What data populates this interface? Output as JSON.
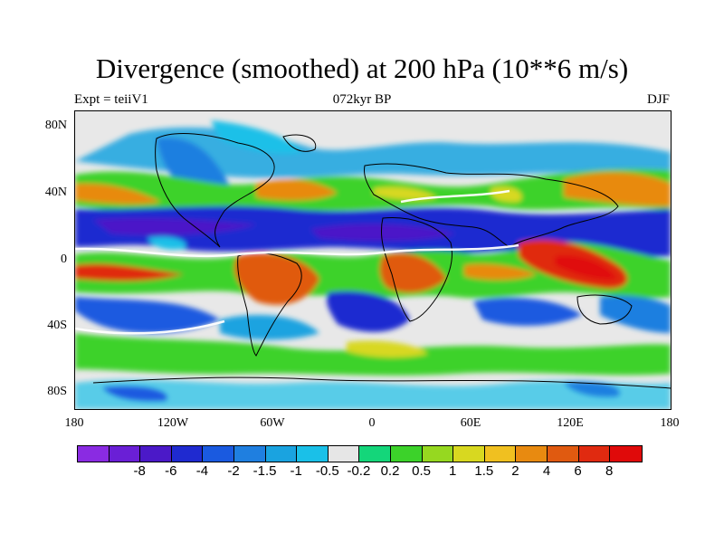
{
  "title": "Divergence (smoothed) at 200 hPa (10**6 m/s)",
  "subtitle_left": "Expt = teiiV1",
  "subtitle_center": "072kyr BP",
  "subtitle_right": "DJF",
  "y_ticks": [
    "80N",
    "40N",
    "0",
    "40S",
    "80S"
  ],
  "x_ticks": [
    "180",
    "120W",
    "60W",
    "0",
    "60E",
    "120E",
    "180"
  ],
  "colorbar": {
    "colors": [
      "#8a2be2",
      "#6a1fd6",
      "#4b19c8",
      "#1f2ad0",
      "#1a5ae0",
      "#1f7fe0",
      "#1aa3e0",
      "#1ac0e8",
      "#e6e6e6",
      "#14d67a",
      "#3cd22a",
      "#96d820",
      "#d8d820",
      "#f0c020",
      "#e88a10",
      "#e05a10",
      "#e02a10",
      "#e00a0a"
    ],
    "labels": [
      "-8",
      "-6",
      "-4",
      "-2",
      "-1.5",
      "-1",
      "-0.5",
      "-0.2",
      "0.2",
      "0.5",
      "1",
      "1.5",
      "2",
      "4",
      "6",
      "8"
    ]
  },
  "map": {
    "projection": "cylindrical equidistant",
    "lon_range": [
      -180,
      180
    ],
    "lat_range": [
      -90,
      90
    ],
    "field": "divergence at 200 hPa",
    "season": "DJF"
  }
}
